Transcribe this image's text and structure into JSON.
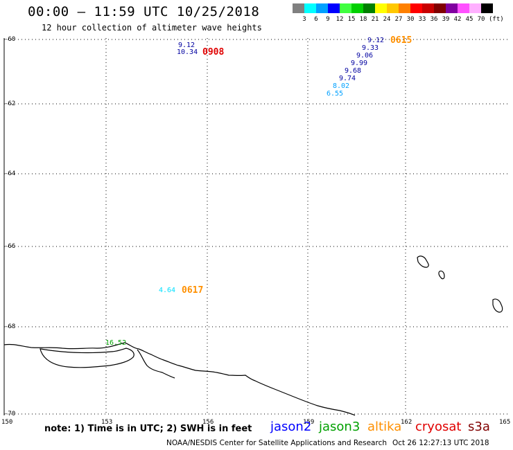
{
  "header": {
    "title": "00:00 – 11:59 UTC 10/25/2018",
    "subtitle": "12 hour collection of altimeter wave heights"
  },
  "colorbar": {
    "unit": "(ft)",
    "colors": [
      "#808080",
      "#00ffff",
      "#00a0ff",
      "#0000ff",
      "#40ff40",
      "#00d000",
      "#008000",
      "#ffff00",
      "#ffc800",
      "#ff8000",
      "#ff0000",
      "#c80000",
      "#800000",
      "#8000a0",
      "#ff50ff",
      "#ffb0ff",
      "#000000"
    ],
    "labels": [
      "3",
      "6",
      "9",
      "12",
      "15",
      "18",
      "21",
      "24",
      "27",
      "30",
      "33",
      "36",
      "39",
      "42",
      "45",
      "70"
    ]
  },
  "axes": {
    "lat_labels": [
      "-60",
      "-62",
      "-64",
      "-66",
      "-68",
      "-70"
    ],
    "lon_labels": [
      "150",
      "153",
      "156",
      "159",
      "162",
      "165"
    ]
  },
  "observations": [
    {
      "value": "9.12",
      "color": "#0000a0"
    },
    {
      "value": "10.34",
      "color": "#0000a0"
    },
    {
      "value": "9.12",
      "color": "#0000a0"
    },
    {
      "value": "9.33",
      "color": "#0000a0"
    },
    {
      "value": "9.06",
      "color": "#0000a0"
    },
    {
      "value": "9.99",
      "color": "#0000a0"
    },
    {
      "value": "9.68",
      "color": "#0000a0"
    },
    {
      "value": "9.74",
      "color": "#0000a0"
    },
    {
      "value": "8.02",
      "color": "#00a0ff"
    },
    {
      "value": "6.55",
      "color": "#00a0ff"
    },
    {
      "value": "4.64",
      "color": "#00e0ff"
    },
    {
      "value": "16.52",
      "color": "#00a000"
    }
  ],
  "timestamps": [
    {
      "value": "0908",
      "color": "#e00000"
    },
    {
      "value": "0615",
      "color": "#ff9000"
    },
    {
      "value": "0617",
      "color": "#ff9000"
    }
  ],
  "footer": {
    "note": "note: 1) Time is in UTC; 2) SWH is in feet",
    "satellites": [
      {
        "name": "jason2",
        "color": "#0000ff"
      },
      {
        "name": "jason3",
        "color": "#00a000"
      },
      {
        "name": "altika",
        "color": "#ff9000"
      },
      {
        "name": "cryosat",
        "color": "#e00000"
      },
      {
        "name": "s3a",
        "color": "#800000"
      }
    ],
    "credit": "NOAA/NESDIS Center for Satellite Applications and Research",
    "generated": "Oct 26 12:27:13 UTC 2018"
  }
}
